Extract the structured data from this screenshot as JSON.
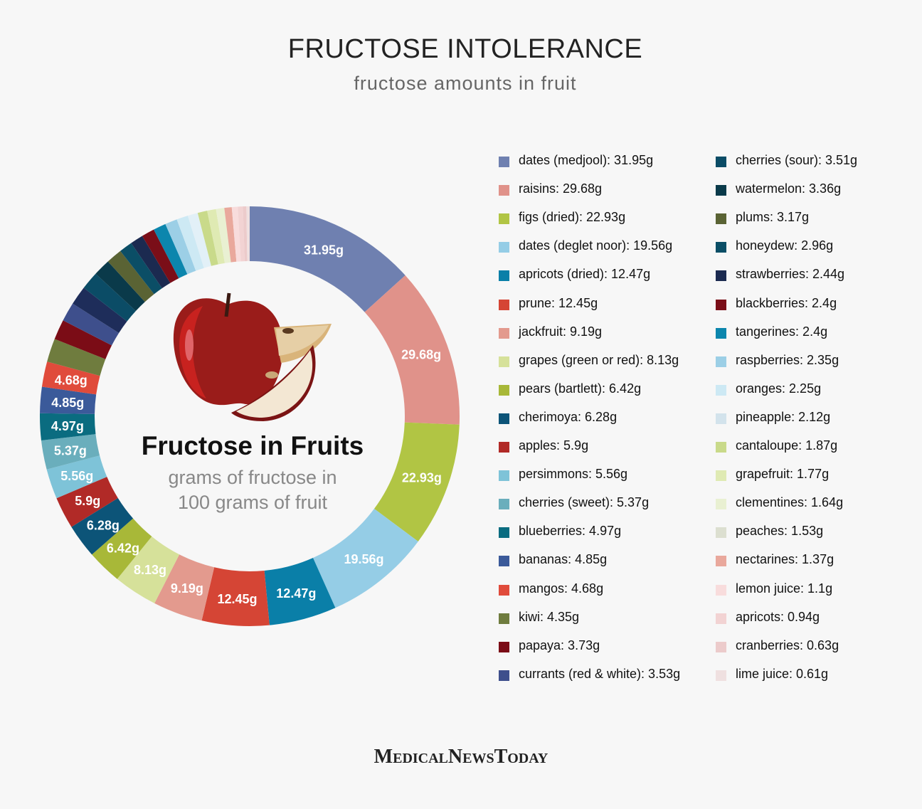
{
  "header": {
    "title": "FRUCTOSE INTOLERANCE",
    "subtitle": "fructose amounts in fruit"
  },
  "center": {
    "title": "Fructose in Fruits",
    "subtitle_line1": "grams of fructose in",
    "subtitle_line2": "100 grams of fruit"
  },
  "logo": "MedicalNewsToday",
  "chart_data": {
    "type": "pie",
    "style": "donut",
    "unit": "g",
    "start": "top, clockwise",
    "legend_placement": "right",
    "slices": [
      {
        "name": "dates (medjool)",
        "value": 31.95,
        "color": "#6f80b0",
        "label": "31.95g"
      },
      {
        "name": "raisins",
        "value": 29.68,
        "color": "#e0928a",
        "label": "29.68g"
      },
      {
        "name": "figs (dried)",
        "value": 22.93,
        "color": "#b1c544",
        "label": "22.93g"
      },
      {
        "name": "dates (deglet noor)",
        "value": 19.56,
        "color": "#95cde6",
        "label": "19.56g"
      },
      {
        "name": "apricots (dried)",
        "value": 12.47,
        "color": "#0a7fa8",
        "label": "12.47g"
      },
      {
        "name": "prune",
        "value": 12.45,
        "color": "#d54535",
        "label": "12.45g"
      },
      {
        "name": "jackfruit",
        "value": 9.19,
        "color": "#e39a8e",
        "label": "9.19g"
      },
      {
        "name": "grapes (green or red)",
        "value": 8.13,
        "color": "#d6e19a",
        "label": "8.13g"
      },
      {
        "name": "pears (bartlett)",
        "value": 6.42,
        "color": "#a8b838",
        "label": "6.42g"
      },
      {
        "name": "cherimoya",
        "value": 6.28,
        "color": "#0c5478",
        "label": "6.28g"
      },
      {
        "name": "apples",
        "value": 5.9,
        "color": "#b12a27",
        "label": "5.9g"
      },
      {
        "name": "persimmons",
        "value": 5.56,
        "color": "#7ec3d8",
        "label": "5.56g"
      },
      {
        "name": "cherries (sweet)",
        "value": 5.37,
        "color": "#6aaebc",
        "label": "5.37g"
      },
      {
        "name": "blueberries",
        "value": 4.97,
        "color": "#0a6c80",
        "label": "4.97g"
      },
      {
        "name": "bananas",
        "value": 4.85,
        "color": "#3b5a9a",
        "label": "4.85g"
      },
      {
        "name": "mangos",
        "value": 4.68,
        "color": "#e04b3b",
        "label": "4.68g"
      },
      {
        "name": "kiwi",
        "value": 4.35,
        "color": "#6f7c3e"
      },
      {
        "name": "papaya",
        "value": 3.73,
        "color": "#7b0c16"
      },
      {
        "name": "currants (red & white)",
        "value": 3.53,
        "color": "#3e4f8c"
      },
      {
        "name": "cherries (sour)",
        "value": 3.51,
        "color": "#1e2d5a"
      },
      {
        "name": "watermelon",
        "value": 3.36,
        "color": "#0b4c66"
      },
      {
        "name": "plums",
        "value": 3.17,
        "color": "#0a3a4a"
      },
      {
        "name": "honeydew",
        "value": 2.96,
        "color": "#5a6334"
      },
      {
        "name": "strawberries",
        "value": 2.44,
        "color": "#0b4e66"
      },
      {
        "name": "blackberries",
        "value": 2.4,
        "color": "#1b2a50"
      },
      {
        "name": "tangerines",
        "value": 2.4,
        "color": "#7a0e18"
      },
      {
        "name": "raspberries",
        "value": 2.35,
        "color": "#0c86ad"
      },
      {
        "name": "oranges",
        "value": 2.25,
        "color": "#9ccfe6"
      },
      {
        "name": "pineapple",
        "value": 2.12,
        "color": "#cde9f4"
      },
      {
        "name": "cantaloupe",
        "value": 1.87,
        "color": "#e2f0f7"
      },
      {
        "name": "grapefruit",
        "value": 1.77,
        "color": "#c9da8a"
      },
      {
        "name": "clementines",
        "value": 1.64,
        "color": "#dfeab3"
      },
      {
        "name": "peaches",
        "value": 1.53,
        "color": "#e9f0d2"
      },
      {
        "name": "nectarines",
        "value": 1.37,
        "color": "#e9a89c"
      },
      {
        "name": "lemon juice",
        "value": 1.1,
        "color": "#f8dcdc"
      },
      {
        "name": "apricots",
        "value": 0.94,
        "color": "#f2d3d3"
      },
      {
        "name": "cranberries",
        "value": 0.63,
        "color": "#eccbcb"
      },
      {
        "name": "lime juice",
        "value": 0.61,
        "color": "#efe0e0"
      }
    ],
    "legend": [
      {
        "text": "dates (medjool): 31.95g",
        "color": "#6f80b0"
      },
      {
        "text": "raisins: 29.68g",
        "color": "#e0928a"
      },
      {
        "text": "figs (dried): 22.93g",
        "color": "#b1c544"
      },
      {
        "text": "dates (deglet noor): 19.56g",
        "color": "#95cde6"
      },
      {
        "text": "apricots (dried): 12.47g",
        "color": "#0a7fa8"
      },
      {
        "text": "prune: 12.45g",
        "color": "#d54535"
      },
      {
        "text": "jackfruit: 9.19g",
        "color": "#e39a8e"
      },
      {
        "text": "grapes (green or red): 8.13g",
        "color": "#d6e19a"
      },
      {
        "text": "pears (bartlett): 6.42g",
        "color": "#a8b838"
      },
      {
        "text": "cherimoya: 6.28g",
        "color": "#0c5478"
      },
      {
        "text": "apples: 5.9g",
        "color": "#b12a27"
      },
      {
        "text": "persimmons: 5.56g",
        "color": "#7ec3d8"
      },
      {
        "text": "cherries (sweet): 5.37g",
        "color": "#6aaebc"
      },
      {
        "text": "blueberries: 4.97g",
        "color": "#0a6c80"
      },
      {
        "text": "bananas: 4.85g",
        "color": "#3b5a9a"
      },
      {
        "text": "mangos: 4.68g",
        "color": "#e04b3b"
      },
      {
        "text": "kiwi: 4.35g",
        "color": "#6f7c3e"
      },
      {
        "text": "papaya: 3.73g",
        "color": "#7b0c16"
      },
      {
        "text": "currants (red & white): 3.53g",
        "color": "#3e4f8c"
      },
      {
        "text": "cherries (sour): 3.51g",
        "color": "#0b4c66"
      },
      {
        "text": "watermelon: 3.36g",
        "color": "#0a3a4a"
      },
      {
        "text": "plums: 3.17g",
        "color": "#5a6334"
      },
      {
        "text": "honeydew: 2.96g",
        "color": "#0b4e66"
      },
      {
        "text": "strawberries: 2.44g",
        "color": "#1b2a50"
      },
      {
        "text": "blackberries: 2.4g",
        "color": "#7a0e18"
      },
      {
        "text": "tangerines: 2.4g",
        "color": "#0c86ad"
      },
      {
        "text": "raspberries: 2.35g",
        "color": "#9ccfe6"
      },
      {
        "text": "oranges: 2.25g",
        "color": "#cde9f4"
      },
      {
        "text": "pineapple: 2.12g",
        "color": "#d3e3ec"
      },
      {
        "text": "cantaloupe: 1.87g",
        "color": "#c9da8a"
      },
      {
        "text": "grapefruit: 1.77g",
        "color": "#dfeab3"
      },
      {
        "text": "clementines: 1.64g",
        "color": "#e9f0d2"
      },
      {
        "text": "peaches: 1.53g",
        "color": "#dcdfd0"
      },
      {
        "text": "nectarines: 1.37g",
        "color": "#e9a89c"
      },
      {
        "text": "lemon juice: 1.1g",
        "color": "#f8dcdc"
      },
      {
        "text": "apricots: 0.94g",
        "color": "#f2d3d3"
      },
      {
        "text": "cranberries: 0.63g",
        "color": "#eccbcb"
      },
      {
        "text": "lime juice: 0.61g",
        "color": "#efe0e0"
      }
    ]
  }
}
